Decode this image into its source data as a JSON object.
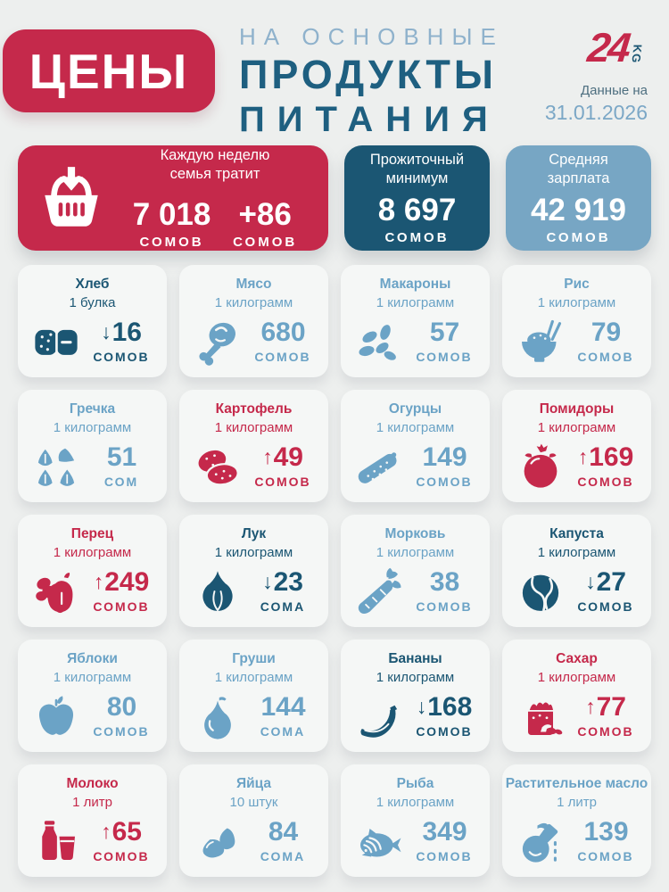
{
  "colors": {
    "red": "#c5294b",
    "dark_teal": "#1b5673",
    "light_blue": "#77a6c4",
    "background": "#edefee",
    "card_bg": "#f5f7f6",
    "trend_up": "#c5294b",
    "trend_down": "#1b5673",
    "trend_flat": "#6ba3c6"
  },
  "header": {
    "badge": "ЦЕНЫ",
    "subtitle": "НА ОСНОВНЫЕ",
    "title_line1": "ПРОДУКТЫ",
    "title_line2": "ПИТАНИЯ",
    "logo_number": "24",
    "logo_suffix": "KG",
    "date_label": "Данные на",
    "date_value": "31.01.2026"
  },
  "summary": {
    "weekly": {
      "icon": "basket-icon",
      "label_line1": "Каждую неделю",
      "label_line2": "семья тратит",
      "amount": "7 018",
      "unit": "СОМОВ",
      "delta": "+86",
      "delta_unit": "СОМОВ"
    },
    "minimum": {
      "label_line1": "Прожиточный",
      "label_line2": "минимум",
      "amount": "8 697",
      "unit": "СОМОВ"
    },
    "salary": {
      "label_line1": "Средняя",
      "label_line2": "зарплата",
      "amount": "42 919",
      "unit": "СОМОВ"
    }
  },
  "products": [
    {
      "name": "Хлеб",
      "quantity": "1 булка",
      "trend": "down",
      "arrow": "↓",
      "price": "16",
      "unit": "СОМОВ",
      "icon": "bread-icon"
    },
    {
      "name": "Мясо",
      "quantity": "1 килограмм",
      "trend": "flat",
      "arrow": "",
      "price": "680",
      "unit": "СОМОВ",
      "icon": "meat-icon"
    },
    {
      "name": "Макароны",
      "quantity": "1 килограмм",
      "trend": "flat",
      "arrow": "",
      "price": "57",
      "unit": "СОМОВ",
      "icon": "pasta-icon"
    },
    {
      "name": "Рис",
      "quantity": "1 килограмм",
      "trend": "flat",
      "arrow": "",
      "price": "79",
      "unit": "СОМОВ",
      "icon": "rice-icon"
    },
    {
      "name": "Гречка",
      "quantity": "1 килограмм",
      "trend": "flat",
      "arrow": "",
      "price": "51",
      "unit": "СОМ",
      "icon": "buckwheat-icon"
    },
    {
      "name": "Картофель",
      "quantity": "1 килограмм",
      "trend": "up",
      "arrow": "↑",
      "price": "49",
      "unit": "СОМОВ",
      "icon": "potato-icon"
    },
    {
      "name": "Огурцы",
      "quantity": "1 килограмм",
      "trend": "flat",
      "arrow": "",
      "price": "149",
      "unit": "СОМОВ",
      "icon": "cucumber-icon"
    },
    {
      "name": "Помидоры",
      "quantity": "1 килограмм",
      "trend": "up",
      "arrow": "↑",
      "price": "169",
      "unit": "СОМОВ",
      "icon": "tomato-icon"
    },
    {
      "name": "Перец",
      "quantity": "1 килограмм",
      "trend": "up",
      "arrow": "↑",
      "price": "249",
      "unit": "СОМОВ",
      "icon": "pepper-icon"
    },
    {
      "name": "Лук",
      "quantity": "1 килограмм",
      "trend": "down",
      "arrow": "↓",
      "price": "23",
      "unit": "СОМА",
      "icon": "onion-icon"
    },
    {
      "name": "Морковь",
      "quantity": "1 килограмм",
      "trend": "flat",
      "arrow": "",
      "price": "38",
      "unit": "СОМОВ",
      "icon": "carrot-icon"
    },
    {
      "name": "Капуста",
      "quantity": "1 килограмм",
      "trend": "down",
      "arrow": "↓",
      "price": "27",
      "unit": "СОМОВ",
      "icon": "cabbage-icon"
    },
    {
      "name": "Яблоки",
      "quantity": "1 килограмм",
      "trend": "flat",
      "arrow": "",
      "price": "80",
      "unit": "СОМОВ",
      "icon": "apple-icon"
    },
    {
      "name": "Груши",
      "quantity": "1 килограмм",
      "trend": "flat",
      "arrow": "",
      "price": "144",
      "unit": "СОМА",
      "icon": "pear-icon"
    },
    {
      "name": "Бананы",
      "quantity": "1 килограмм",
      "trend": "down",
      "arrow": "↓",
      "price": "168",
      "unit": "СОМОВ",
      "icon": "banana-icon"
    },
    {
      "name": "Сахар",
      "quantity": "1 килограмм",
      "trend": "up",
      "arrow": "↑",
      "price": "77",
      "unit": "СОМОВ",
      "icon": "sugar-icon"
    },
    {
      "name": "Молоко",
      "quantity": "1 литр",
      "trend": "up",
      "arrow": "↑",
      "price": "65",
      "unit": "СОМОВ",
      "icon": "milk-icon"
    },
    {
      "name": "Яйца",
      "quantity": "10 штук",
      "trend": "flat",
      "arrow": "",
      "price": "84",
      "unit": "СОМА",
      "icon": "eggs-icon"
    },
    {
      "name": "Рыба",
      "quantity": "1 килограмм",
      "trend": "flat",
      "arrow": "",
      "price": "349",
      "unit": "СОМОВ",
      "icon": "fish-icon"
    },
    {
      "name": "Растительное масло",
      "quantity": "1 литр",
      "trend": "flat",
      "arrow": "",
      "price": "139",
      "unit": "СОМОВ",
      "icon": "oil-icon"
    }
  ],
  "chart_data": {
    "type": "table",
    "title": "ЦЕНЫ НА ОСНОВНЫЕ ПРОДУКТЫ ПИТАНИЯ",
    "as_of_date": "31.01.2026",
    "currency_units": [
      "СОМОВ",
      "СОМ",
      "СОМА"
    ],
    "weekly_family_spend": {
      "value": 7018,
      "change": 86
    },
    "subsistence_minimum": 8697,
    "average_salary": 42919,
    "categories": [
      "Хлеб",
      "Мясо",
      "Макароны",
      "Рис",
      "Гречка",
      "Картофель",
      "Огурцы",
      "Помидоры",
      "Перец",
      "Лук",
      "Морковь",
      "Капуста",
      "Яблоки",
      "Груши",
      "Бананы",
      "Сахар",
      "Молоко",
      "Яйца",
      "Рыба",
      "Растительное масло"
    ],
    "values": [
      16,
      680,
      57,
      79,
      51,
      49,
      149,
      169,
      249,
      23,
      38,
      27,
      80,
      144,
      168,
      77,
      65,
      84,
      349,
      139
    ],
    "trends": [
      "down",
      "flat",
      "flat",
      "flat",
      "flat",
      "up",
      "flat",
      "up",
      "up",
      "down",
      "flat",
      "down",
      "flat",
      "flat",
      "down",
      "up",
      "up",
      "flat",
      "flat",
      "flat"
    ]
  }
}
